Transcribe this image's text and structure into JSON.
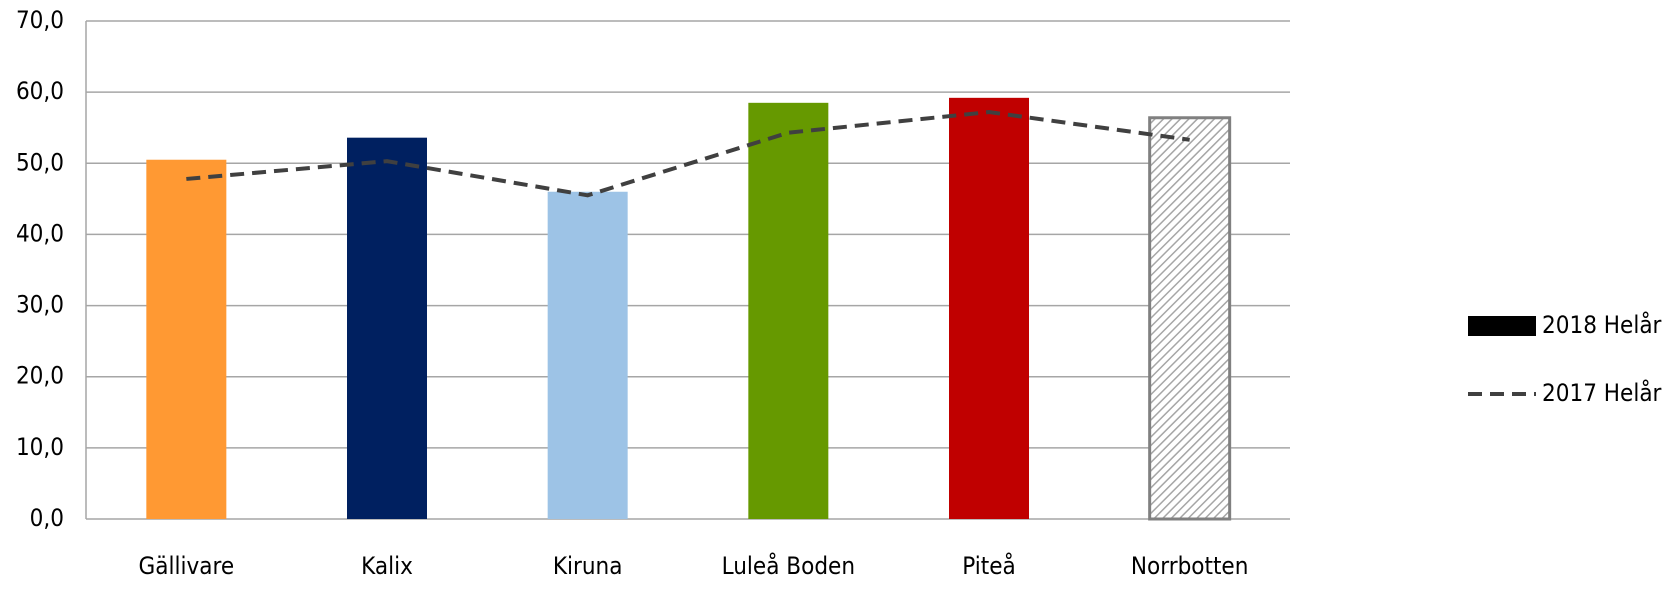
{
  "chart_data": {
    "type": "bar_line",
    "categories": [
      "Gällivare",
      "Kalix",
      "Kiruna",
      "Luleå Boden",
      "Piteå",
      "Norrbotten"
    ],
    "series": [
      {
        "name": "2018 Helår",
        "type": "bar",
        "color": "#000000",
        "colors": [
          "#ff9933",
          "#002060",
          "#9dc3e6",
          "#669900",
          "#c00000",
          "#808080"
        ],
        "patterns": [
          null,
          null,
          null,
          null,
          null,
          "diagonal"
        ],
        "values": [
          50.5,
          53.6,
          46.0,
          58.5,
          59.2,
          56.4
        ]
      },
      {
        "name": "2017 Helår",
        "type": "line",
        "color": "#404040",
        "dashed": true,
        "values": [
          47.8,
          50.3,
          45.5,
          54.3,
          57.2,
          53.3
        ]
      }
    ],
    "ylim": [
      0,
      70
    ],
    "yticks": [
      {
        "value": 0,
        "label": "0,0"
      },
      {
        "value": 10,
        "label": "10,0"
      },
      {
        "value": 20,
        "label": "20,0"
      },
      {
        "value": 30,
        "label": "30,0"
      },
      {
        "value": 40,
        "label": "40,0"
      },
      {
        "value": 50,
        "label": "50,0"
      },
      {
        "value": 60,
        "label": "60,0"
      },
      {
        "value": 70,
        "label": "70,0"
      }
    ],
    "grid": true,
    "legend": "right"
  }
}
